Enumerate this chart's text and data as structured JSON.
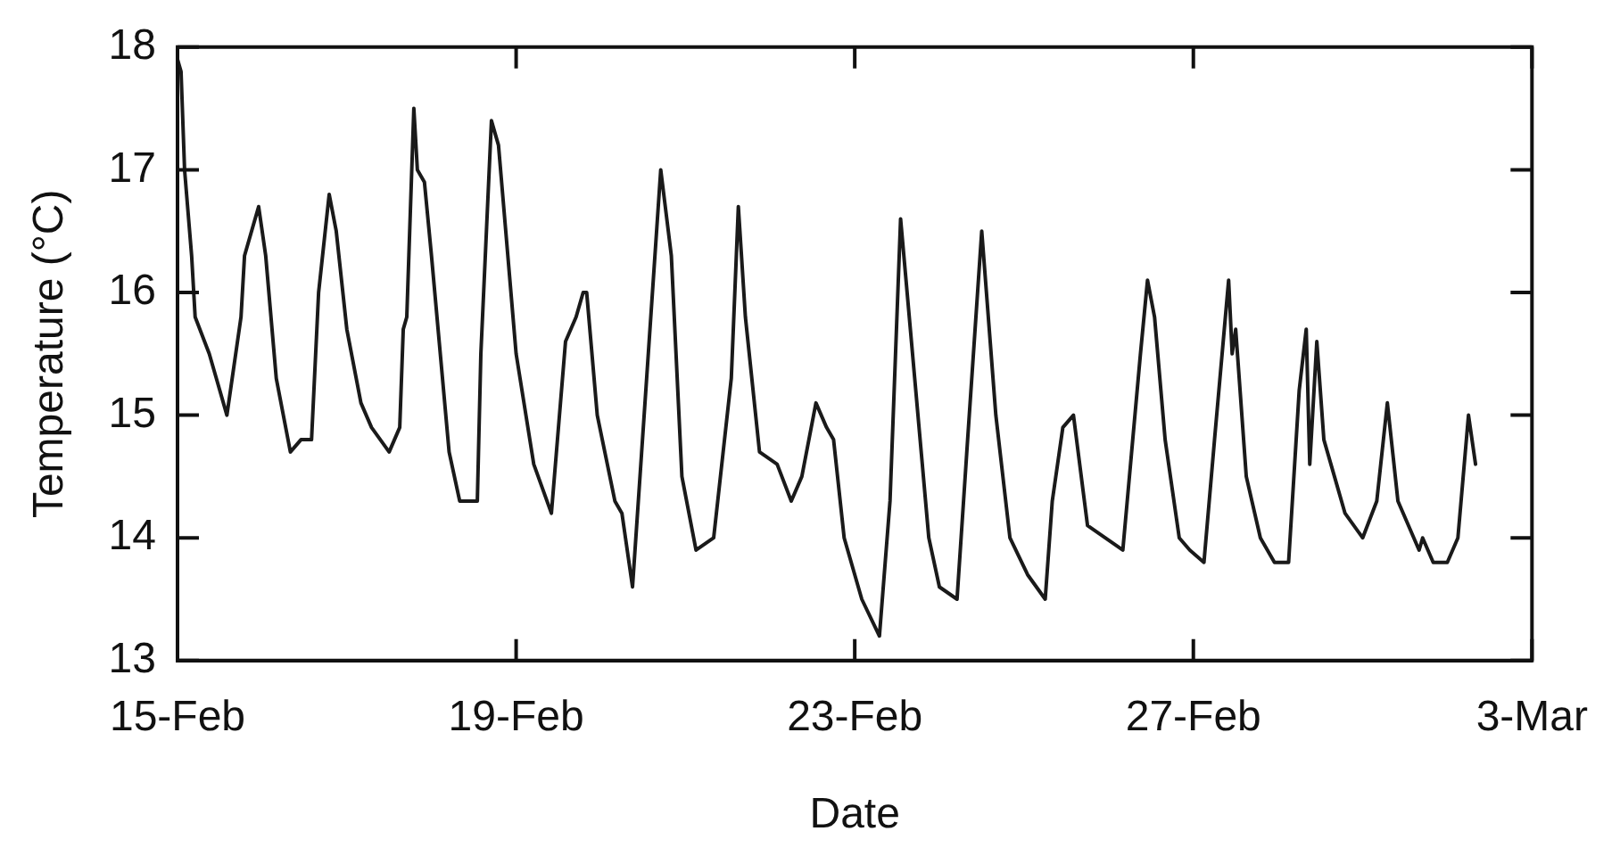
{
  "chart_data": {
    "type": "line",
    "xlabel": "Date",
    "ylabel": "Temperature (°C)",
    "marker": "none",
    "line_style": "solid",
    "grid": false,
    "legend": false,
    "xlim": [
      "--02-15",
      "--03-03"
    ],
    "xticks": [
      {
        "value": "--02-15",
        "label": "15-Feb"
      },
      {
        "value": "--02-19",
        "label": "19-Feb"
      },
      {
        "value": "--02-23",
        "label": "23-Feb"
      },
      {
        "value": "--02-27",
        "label": "27-Feb"
      },
      {
        "value": "--03-03",
        "label": "3-Mar"
      }
    ],
    "ylim": [
      13,
      18
    ],
    "yticks": [
      13,
      14,
      15,
      16,
      17,
      18
    ],
    "series": [
      {
        "color": "#1a1a1a",
        "x": [
          "--02-15T00:00",
          "--02-15T01:00",
          "--02-15T02:00",
          "--02-15T04:00",
          "--02-15T05:00",
          "--02-15T09:00",
          "--02-15T11:00",
          "--02-15T14:00",
          "--02-15T18:00",
          "--02-15T19:00",
          "--02-15T23:00",
          "--02-16T01:00",
          "--02-16T04:00",
          "--02-16T08:00",
          "--02-16T11:00",
          "--02-16T14:00",
          "--02-16T16:00",
          "--02-16T19:00",
          "--02-16T21:00",
          "--02-17T00:00",
          "--02-17T04:00",
          "--02-17T07:00",
          "--02-17T12:00",
          "--02-17T15:00",
          "--02-17T16:00",
          "--02-17T17:00",
          "--02-17T19:00",
          "--02-17T20:00",
          "--02-17T22:00",
          "--02-18T00:00",
          "--02-18T05:00",
          "--02-18T08:00",
          "--02-18T13:00",
          "--02-18T14:00",
          "--02-18T17:00",
          "--02-18T19:00",
          "--02-19T00:00",
          "--02-19T05:00",
          "--02-19T10:00",
          "--02-19T14:00",
          "--02-19T17:00",
          "--02-19T19:00",
          "--02-19T20:00",
          "--02-19T23:00",
          "--02-20T04:00",
          "--02-20T06:00",
          "--02-20T09:00",
          "--02-20T13:00",
          "--02-20T17:00",
          "--02-20T20:00",
          "--02-20T23:00",
          "--02-21T03:00",
          "--02-21T08:00",
          "--02-21T13:00",
          "--02-21T15:00",
          "--02-21T17:00",
          "--02-21T21:00",
          "--02-22T02:00",
          "--02-22T06:00",
          "--02-22T09:00",
          "--02-22T13:00",
          "--02-22T16:00",
          "--02-22T18:00",
          "--02-22T21:00",
          "--02-23T02:00",
          "--02-23T07:00",
          "--02-23T10:00",
          "--02-23T13:00",
          "--02-23T17:00",
          "--02-23T21:00",
          "--02-24T00:00",
          "--02-24T05:00",
          "--02-24T08:00",
          "--02-24T12:00",
          "--02-24T16:00",
          "--02-24T20:00",
          "--02-25T01:00",
          "--02-25T06:00",
          "--02-25T08:00",
          "--02-25T11:00",
          "--02-25T14:00",
          "--02-25T18:00",
          "--02-25T23:00",
          "--02-26T04:00",
          "--02-26T09:00",
          "--02-26T11:00",
          "--02-26T13:00",
          "--02-26T16:00",
          "--02-26T20:00",
          "--02-26T23:00",
          "--02-27T03:00",
          "--02-27T06:00",
          "--02-27T10:00",
          "--02-27T11:00",
          "--02-27T12:00",
          "--02-27T15:00",
          "--02-27T19:00",
          "--02-27T23:00",
          "--02-28T03:00",
          "--02-28T06:00",
          "--02-28T08:00",
          "--02-28T09:00",
          "--02-28T11:00",
          "--02-28T13:00",
          "--02-28T16:00",
          "--02-28T19:00",
          "--03-01T00:00",
          "--03-01T04:00",
          "--03-01T07:00",
          "--03-01T10:00",
          "--03-01T16:00",
          "--03-01T17:00",
          "--03-01T20:00",
          "--03-02T00:00",
          "--03-02T03:00",
          "--03-02T06:00",
          "--03-02T08:00"
        ],
        "values": [
          17.9,
          17.8,
          17.0,
          16.3,
          15.8,
          15.5,
          15.3,
          15.0,
          15.8,
          16.3,
          16.7,
          16.3,
          15.3,
          14.7,
          14.8,
          14.8,
          16.0,
          16.8,
          16.5,
          15.7,
          15.1,
          14.9,
          14.7,
          14.9,
          15.7,
          15.8,
          17.5,
          17.0,
          16.9,
          16.3,
          14.7,
          14.3,
          14.3,
          15.5,
          17.4,
          17.2,
          15.5,
          14.6,
          14.2,
          15.6,
          15.8,
          16.0,
          16.0,
          15.0,
          14.3,
          14.2,
          13.6,
          15.3,
          17.0,
          16.3,
          14.5,
          13.9,
          14.0,
          15.3,
          16.7,
          15.8,
          14.7,
          14.6,
          14.3,
          14.5,
          15.1,
          14.9,
          14.8,
          14.0,
          13.5,
          13.2,
          14.3,
          16.6,
          15.3,
          14.0,
          13.6,
          13.5,
          14.8,
          16.5,
          15.0,
          14.0,
          13.7,
          13.5,
          14.3,
          14.9,
          15.0,
          14.1,
          14.0,
          13.9,
          15.5,
          16.1,
          15.8,
          14.8,
          14.0,
          13.9,
          13.8,
          14.8,
          16.1,
          15.5,
          15.7,
          14.5,
          14.0,
          13.8,
          13.8,
          15.2,
          15.7,
          14.6,
          15.6,
          14.8,
          14.5,
          14.2,
          14.0,
          14.3,
          15.1,
          14.3,
          13.9,
          14.0,
          13.8,
          13.8,
          14.0,
          15.0,
          14.6
        ]
      }
    ]
  }
}
